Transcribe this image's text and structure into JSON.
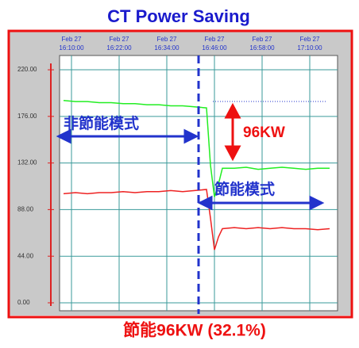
{
  "chart_data": {
    "type": "line",
    "title": "CT Power Saving",
    "footer": "節能96KW (32.1%)",
    "annotations": [
      "非節能模式",
      "節能模式",
      "96KW"
    ],
    "x": [
      "16:08:00",
      "16:11:00",
      "16:14:00",
      "16:17:00",
      "16:20:00",
      "16:23:00",
      "16:26:00",
      "16:29:00",
      "16:32:00",
      "16:35:00",
      "16:38:00",
      "16:41:00",
      "16:44:00",
      "16:45:00",
      "16:46:00",
      "16:47:00",
      "16:48:00",
      "16:51:00",
      "16:54:00",
      "16:57:00",
      "17:00:00",
      "17:03:00",
      "17:06:00",
      "17:09:00",
      "17:12:00",
      "17:15:00"
    ],
    "series": [
      {
        "color": "#22ee22",
        "values": [
          191,
          190,
          190,
          189,
          189,
          188,
          188,
          187,
          187,
          186,
          186,
          185,
          184,
          130,
          100,
          112,
          127,
          127,
          128,
          126,
          127,
          128,
          127,
          126,
          127,
          127
        ]
      },
      {
        "color": "#ee2222",
        "values": [
          103,
          104,
          103,
          104,
          104,
          105,
          104,
          105,
          105,
          106,
          105,
          106,
          107,
          80,
          50,
          62,
          70,
          71,
          70,
          71,
          70,
          71,
          70,
          70,
          69,
          70
        ]
      }
    ],
    "xlim": [
      "16:07:00",
      "17:17:00"
    ],
    "xticks": [
      {
        "date": "Feb 27",
        "time": "16:10:00"
      },
      {
        "date": "Feb 27",
        "time": "16:22:00"
      },
      {
        "date": "Feb 27",
        "time": "16:34:00"
      },
      {
        "date": "Feb 27",
        "time": "16:46:00"
      },
      {
        "date": "Feb 27",
        "time": "16:58:00"
      },
      {
        "date": "Feb 27",
        "time": "17:10:00"
      }
    ],
    "ylim": [
      -7.5,
      233.5
    ],
    "yticks": [
      {
        "value": 0,
        "label": "0.00"
      },
      {
        "value": 44,
        "label": "44.00"
      },
      {
        "value": 88,
        "label": "88.00"
      },
      {
        "value": 132,
        "label": "132.00"
      },
      {
        "value": 176,
        "label": "176.00"
      },
      {
        "value": 220,
        "label": "220.00"
      }
    ],
    "grid": true
  }
}
